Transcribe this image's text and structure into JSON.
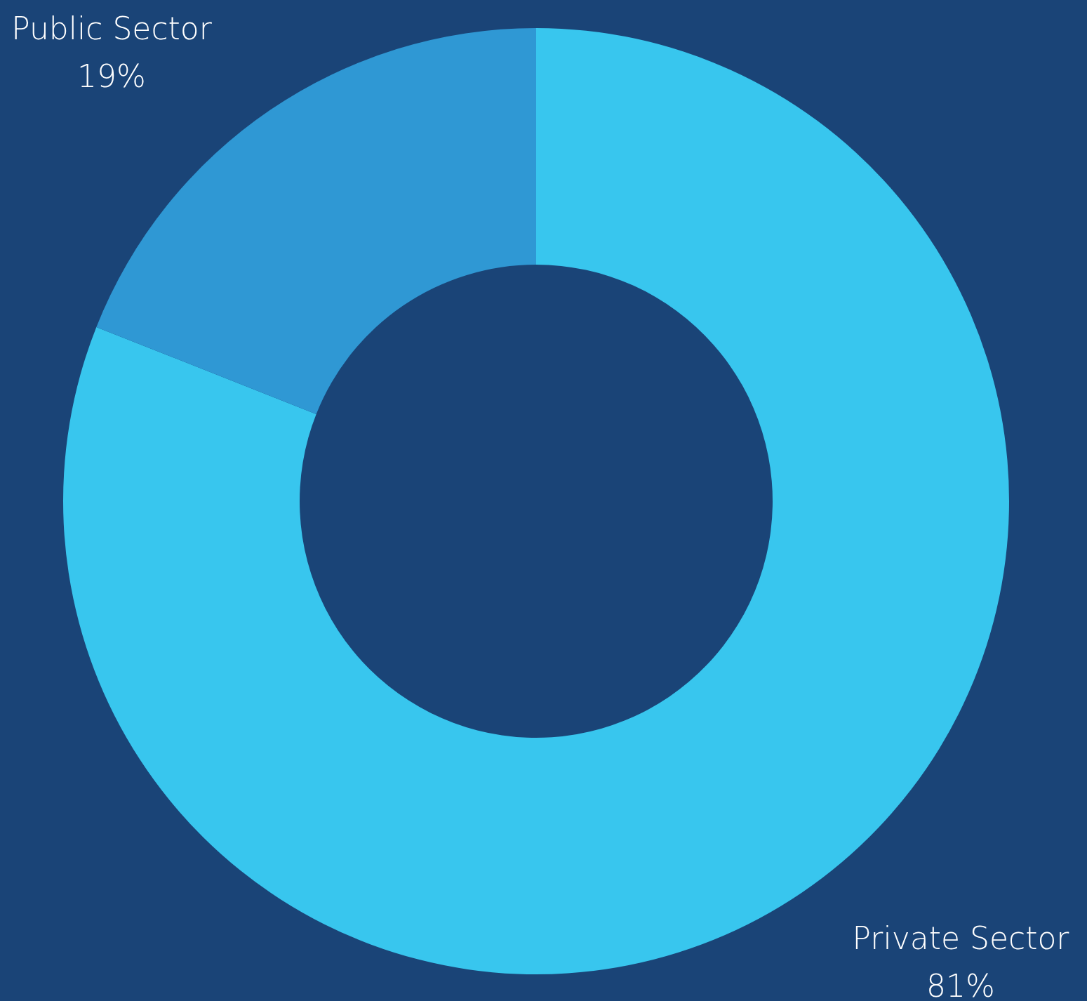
{
  "chart_data": {
    "type": "donut",
    "categories": [
      "Private Sector",
      "Public Sector"
    ],
    "values": [
      81,
      19
    ],
    "colors": [
      "#38c6ee",
      "#2f98d4"
    ],
    "value_labels": [
      "81%",
      "19%"
    ]
  }
}
